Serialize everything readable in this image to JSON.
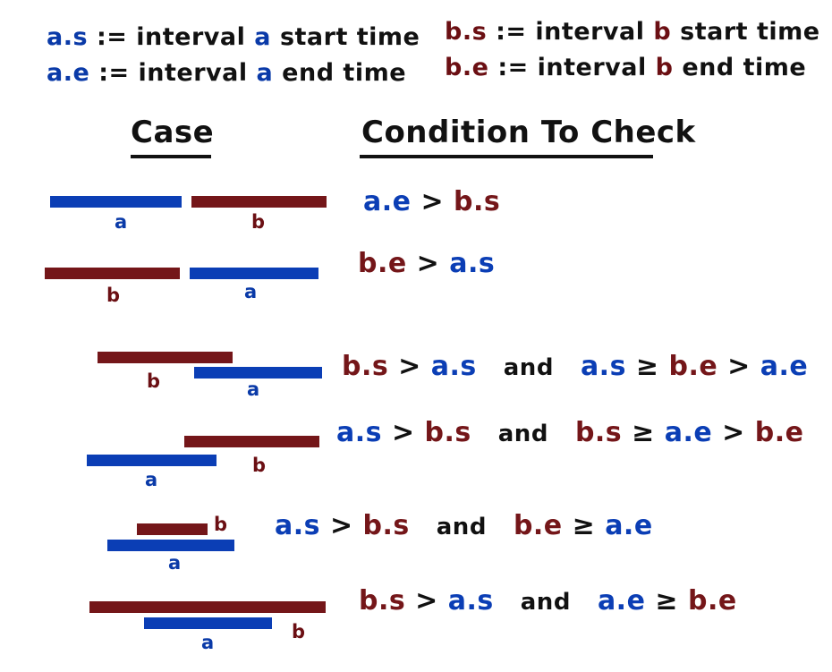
{
  "legend": [
    {
      "var": "a.s",
      "assign": ":=",
      "desc1": "interval",
      "letter": "a",
      "desc2": "start time",
      "color": "blue"
    },
    {
      "var": "a.e",
      "assign": ":=",
      "desc1": "interval",
      "letter": "a",
      "desc2": "end time",
      "color": "blue"
    },
    {
      "var": "b.s",
      "assign": ":=",
      "desc1": "interval",
      "letter": "b",
      "desc2": "start time",
      "color": "red"
    },
    {
      "var": "b.e",
      "assign": ":=",
      "desc1": "interval",
      "letter": "b",
      "desc2": "end time",
      "color": "red"
    }
  ],
  "headings": {
    "case": "Case",
    "condition": "Condition To Check"
  },
  "colors": {
    "a": "#0b3eb5",
    "b": "#741619",
    "text": "#111111"
  },
  "cases": [
    {
      "label_a": "a",
      "label_b": "b",
      "condition": [
        {
          "t": "a.e",
          "c": "a"
        },
        {
          "t": " > ",
          "c": "op"
        },
        {
          "t": "b.s",
          "c": "b"
        }
      ]
    },
    {
      "label_a": "a",
      "label_b": "b",
      "condition": [
        {
          "t": "b.e",
          "c": "b"
        },
        {
          "t": " > ",
          "c": "op"
        },
        {
          "t": "a.s",
          "c": "a"
        }
      ]
    },
    {
      "label_a": "a",
      "label_b": "b",
      "condition": [
        {
          "t": "b.s",
          "c": "b"
        },
        {
          "t": " > ",
          "c": "op"
        },
        {
          "t": "a.s",
          "c": "a"
        },
        {
          "t": "and",
          "c": "word"
        },
        {
          "t": "a.s",
          "c": "a"
        },
        {
          "t": " ≥ ",
          "c": "op"
        },
        {
          "t": "b.e",
          "c": "b"
        },
        {
          "t": " > ",
          "c": "op"
        },
        {
          "t": "a.e",
          "c": "a"
        }
      ]
    },
    {
      "label_a": "a",
      "label_b": "b",
      "condition": [
        {
          "t": "a.s",
          "c": "a"
        },
        {
          "t": " > ",
          "c": "op"
        },
        {
          "t": "b.s",
          "c": "b"
        },
        {
          "t": "and",
          "c": "word"
        },
        {
          "t": "b.s",
          "c": "b"
        },
        {
          "t": " ≥ ",
          "c": "op"
        },
        {
          "t": "a.e",
          "c": "a"
        },
        {
          "t": " > ",
          "c": "op"
        },
        {
          "t": "b.e",
          "c": "b"
        }
      ]
    },
    {
      "label_a": "a",
      "label_b": "b",
      "condition": [
        {
          "t": "a.s",
          "c": "a"
        },
        {
          "t": " > ",
          "c": "op"
        },
        {
          "t": "b.s",
          "c": "b"
        },
        {
          "t": "and",
          "c": "word"
        },
        {
          "t": "b.e",
          "c": "b"
        },
        {
          "t": " ≥ ",
          "c": "op"
        },
        {
          "t": "a.e",
          "c": "a"
        }
      ]
    },
    {
      "label_a": "a",
      "label_b": "b",
      "condition": [
        {
          "t": "b.s",
          "c": "b"
        },
        {
          "t": " > ",
          "c": "op"
        },
        {
          "t": "a.s",
          "c": "a"
        },
        {
          "t": "and",
          "c": "word"
        },
        {
          "t": "a.e",
          "c": "a"
        },
        {
          "t": " ≥ ",
          "c": "op"
        },
        {
          "t": "b.e",
          "c": "b"
        }
      ]
    }
  ]
}
